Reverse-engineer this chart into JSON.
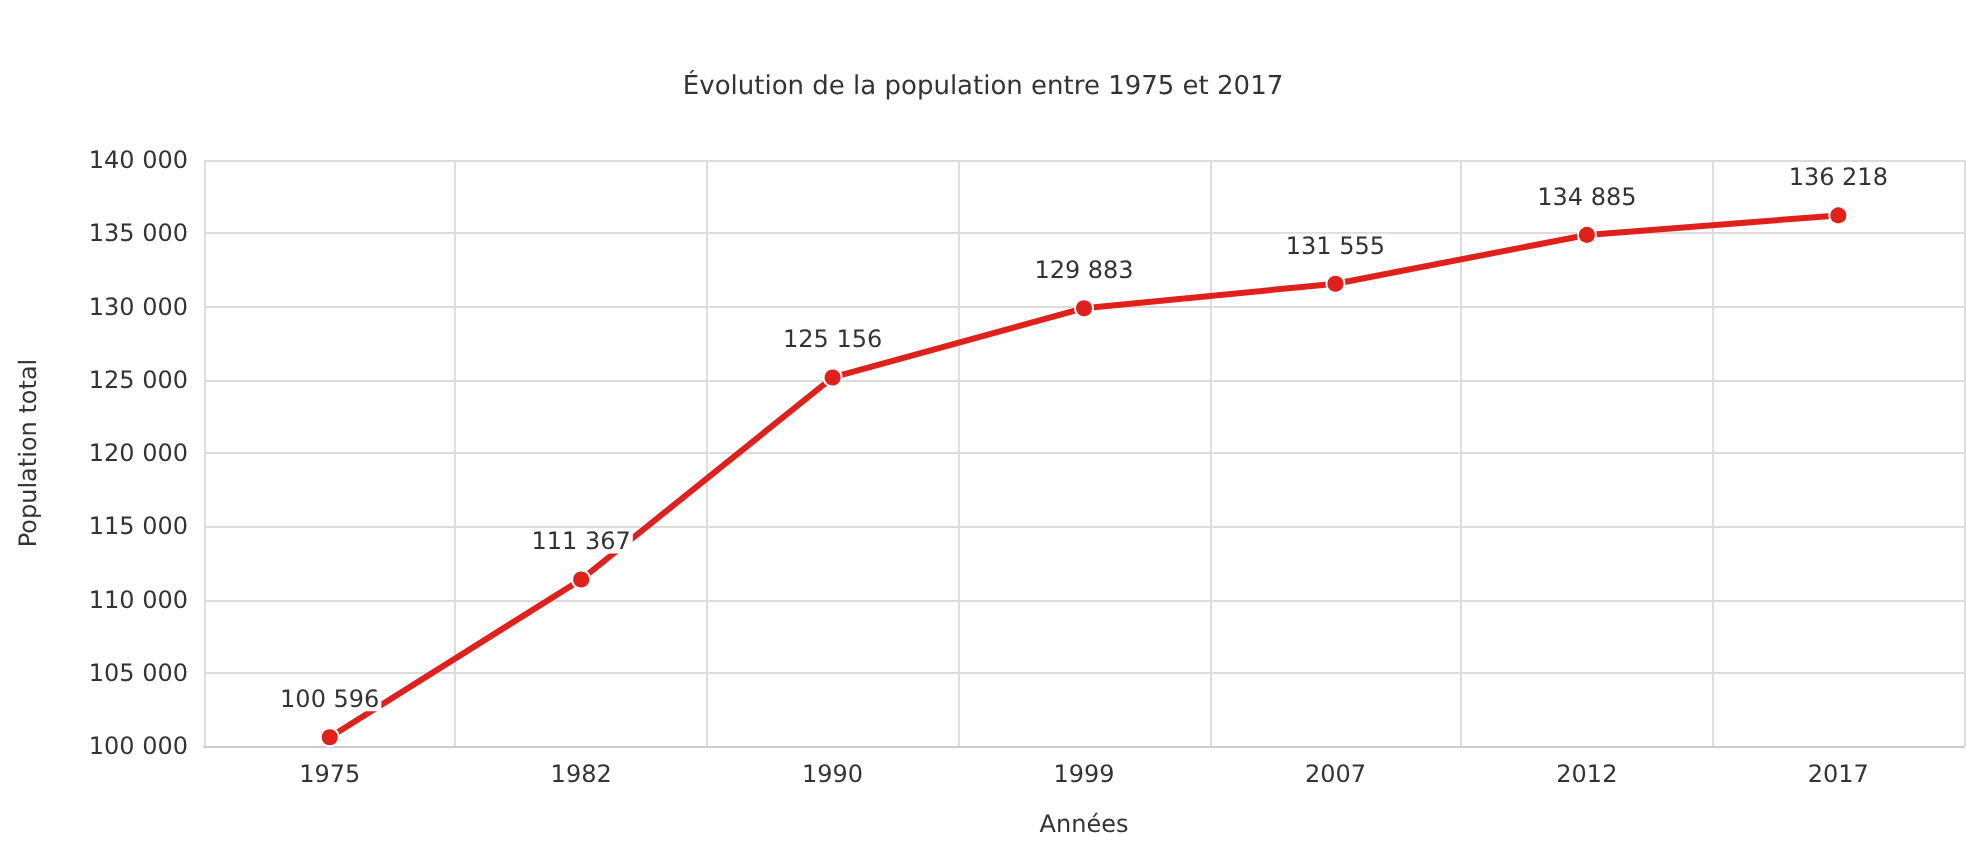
{
  "chart_data": {
    "type": "line",
    "title": "Évolution de la population entre 1975 et 2017",
    "xlabel": "Années",
    "ylabel": "Population total",
    "categories": [
      "1975",
      "1982",
      "1990",
      "1999",
      "2007",
      "2012",
      "2017"
    ],
    "series": [
      {
        "color": "#e0201b",
        "values": [
          100596,
          111367,
          125156,
          129883,
          131555,
          134885,
          136218
        ]
      }
    ],
    "ylim": [
      100000,
      140000
    ],
    "yticks": [
      100000,
      105000,
      110000,
      115000,
      120000,
      125000,
      130000,
      135000,
      140000
    ],
    "grid": true,
    "marker": "circle",
    "line_style": "solid",
    "data_labels": true
  }
}
